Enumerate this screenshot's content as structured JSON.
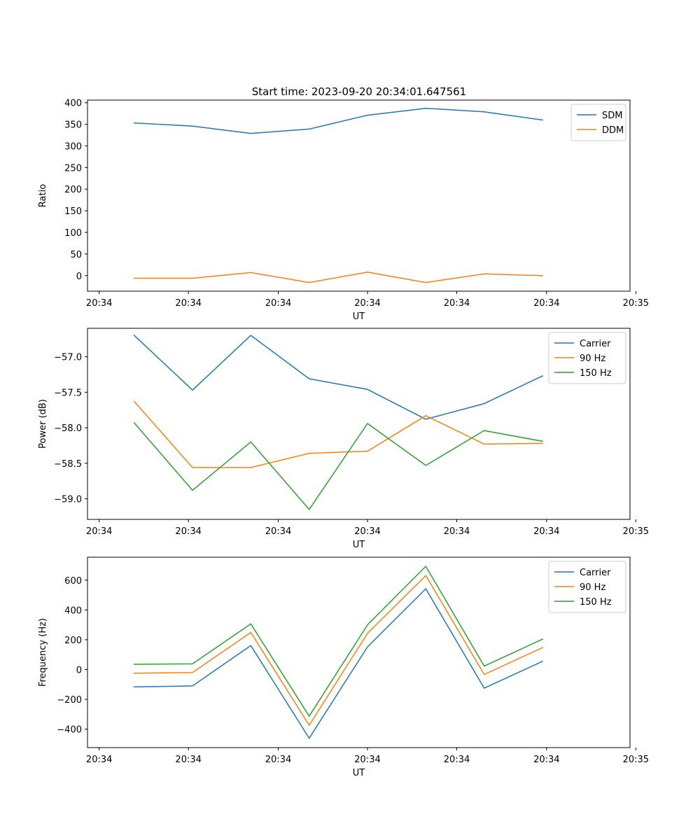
{
  "figure": {
    "title": "Start time: 2023-09-20 20:34:01.647561"
  },
  "chart_data": [
    {
      "type": "line",
      "title": "Start time: 2023-09-20 20:34:01.647561",
      "xlabel": "UT",
      "ylabel": "Ratio",
      "x": [
        1,
        2,
        3,
        4,
        5,
        6,
        7,
        8
      ],
      "xlim": [
        0.2,
        9.5
      ],
      "x_ticks": [
        0.4,
        1.93,
        3.47,
        5.0,
        6.53,
        8.07,
        9.6
      ],
      "x_tick_labels": [
        "20:34",
        "20:34",
        "20:34",
        "20:34",
        "20:34",
        "20:34",
        "20:35"
      ],
      "ylim": [
        -36,
        406
      ],
      "y_ticks": [
        0,
        50,
        100,
        150,
        200,
        250,
        300,
        350,
        400
      ],
      "y_tick_labels": [
        "0",
        "50",
        "100",
        "150",
        "200",
        "250",
        "300",
        "350",
        "400"
      ],
      "legend_position": "top-right",
      "series": [
        {
          "name": "SDM",
          "color": "#1f77b4",
          "values": [
            353,
            346,
            329,
            339,
            371,
            387,
            379,
            360
          ]
        },
        {
          "name": "DDM",
          "color": "#ff7f0e",
          "values": [
            -6,
            -6,
            7,
            -16,
            8,
            -16,
            4,
            0
          ]
        }
      ]
    },
    {
      "type": "line",
      "title": "",
      "xlabel": "UT",
      "ylabel": "Power (dB)",
      "x": [
        1,
        2,
        3,
        4,
        5,
        6,
        7,
        8
      ],
      "xlim": [
        0.2,
        9.5
      ],
      "x_ticks": [
        0.4,
        1.93,
        3.47,
        5.0,
        6.53,
        8.07,
        9.6
      ],
      "x_tick_labels": [
        "20:34",
        "20:34",
        "20:34",
        "20:34",
        "20:34",
        "20:34",
        "20:35"
      ],
      "ylim": [
        -59.29,
        -56.6
      ],
      "y_ticks": [
        -57.0,
        -57.5,
        -58.0,
        -58.5,
        -59.0
      ],
      "y_tick_labels": [
        "−57.0",
        "−57.5",
        "−58.0",
        "−58.5",
        "−59.0"
      ],
      "legend_position": "top-right",
      "series": [
        {
          "name": "Carrier",
          "color": "#1f77b4",
          "values": [
            -56.7,
            -57.47,
            -56.7,
            -57.31,
            -57.46,
            -57.88,
            -57.66,
            -57.27
          ]
        },
        {
          "name": "90 Hz",
          "color": "#ff7f0e",
          "values": [
            -57.63,
            -58.56,
            -58.56,
            -58.36,
            -58.33,
            -57.83,
            -58.23,
            -58.22
          ]
        },
        {
          "name": "150 Hz",
          "color": "#2ca02c",
          "values": [
            -57.93,
            -58.88,
            -58.2,
            -59.15,
            -57.94,
            -58.53,
            -58.04,
            -58.19
          ]
        }
      ]
    },
    {
      "type": "line",
      "title": "",
      "xlabel": "UT",
      "ylabel": "Frequency (Hz)",
      "x": [
        1,
        2,
        3,
        4,
        5,
        6,
        7,
        8
      ],
      "xlim": [
        0.2,
        9.5
      ],
      "x_ticks": [
        0.4,
        1.93,
        3.47,
        5.0,
        6.53,
        8.07,
        9.6
      ],
      "x_tick_labels": [
        "20:34",
        "20:34",
        "20:34",
        "20:34",
        "20:34",
        "20:34",
        "20:35"
      ],
      "ylim": [
        -524,
        754
      ],
      "y_ticks": [
        600,
        400,
        200,
        0,
        -200,
        -400
      ],
      "y_tick_labels": [
        "600",
        "400",
        "200",
        "0",
        "−200",
        "−400"
      ],
      "legend_position": "top-right",
      "series": [
        {
          "name": "Carrier",
          "color": "#1f77b4",
          "values": [
            -116,
            -110,
            161,
            -461,
            152,
            542,
            -125,
            55
          ]
        },
        {
          "name": "90 Hz",
          "color": "#ff7f0e",
          "values": [
            -25,
            -20,
            249,
            -374,
            243,
            631,
            -33,
            147
          ]
        },
        {
          "name": "150 Hz",
          "color": "#2ca02c",
          "values": [
            35,
            38,
            306,
            -313,
            300,
            693,
            23,
            204
          ]
        }
      ]
    }
  ]
}
